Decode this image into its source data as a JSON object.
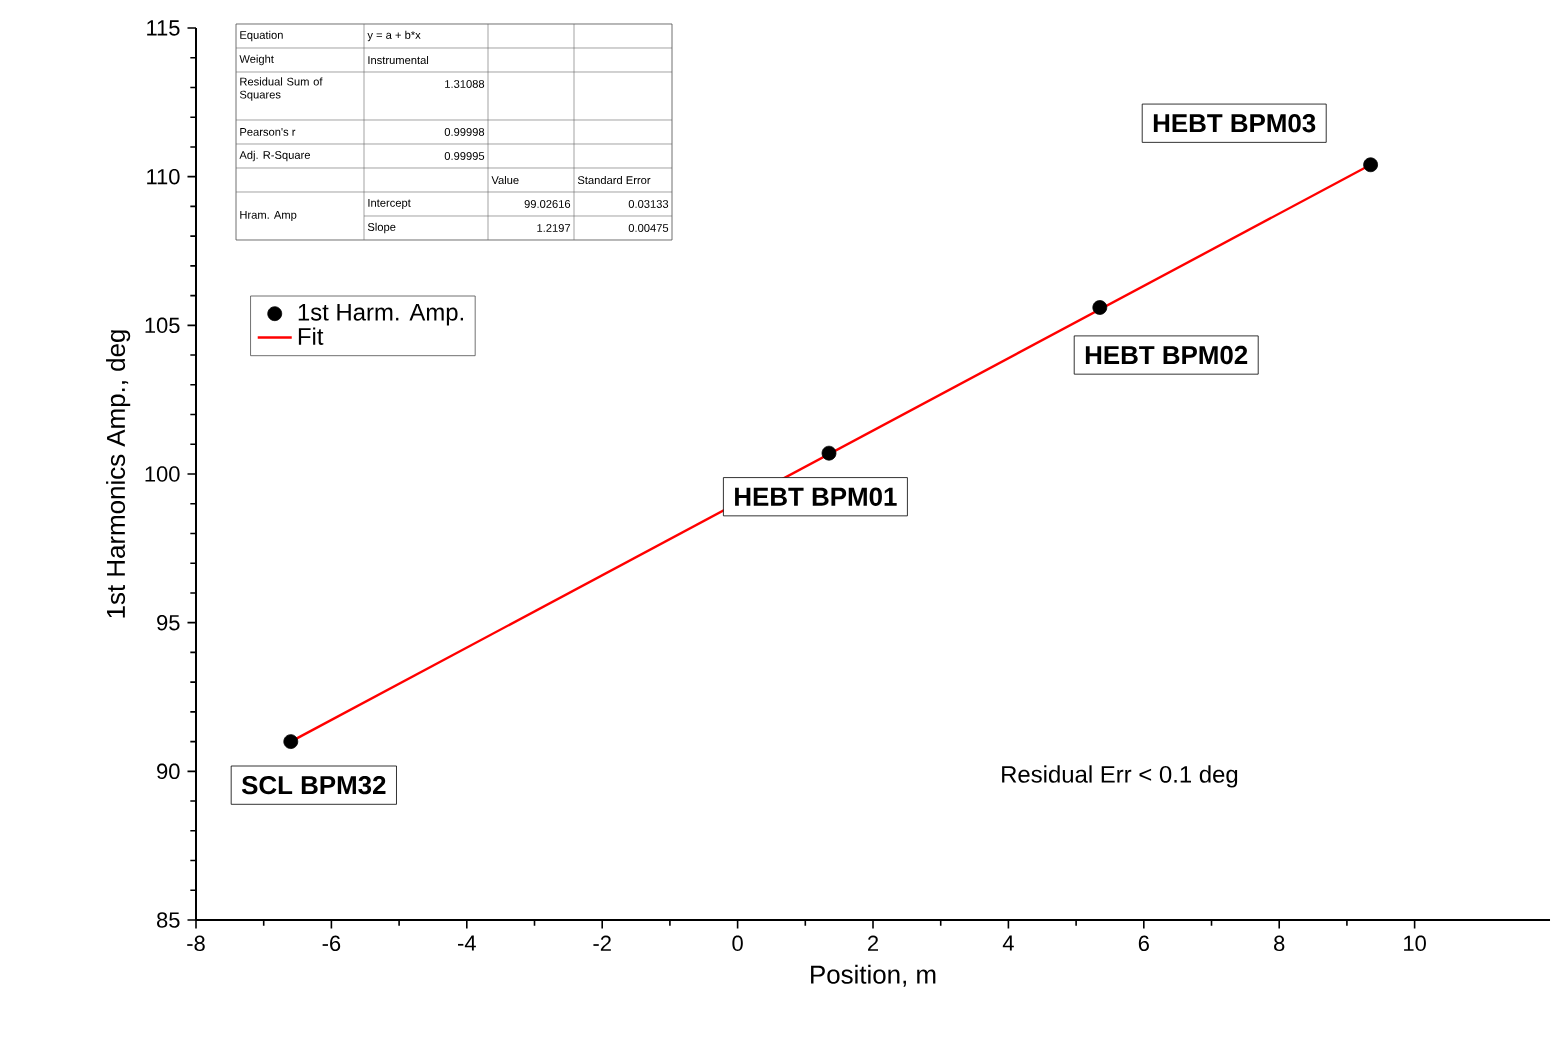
{
  "chart_data": {
    "type": "scatter",
    "xlabel": "Position, m",
    "ylabel": "1st Harmonics Amp., deg",
    "series": [
      {
        "name": "1st Harm. Amp.",
        "color": "#000000",
        "marker": "circle",
        "x": [
          -6.6,
          1.35,
          5.35,
          9.35
        ],
        "values": [
          91.0,
          100.7,
          105.6,
          110.4
        ]
      },
      {
        "name": "Fit",
        "type": "line",
        "color": "#ff0000",
        "marker": "none",
        "x": [
          -6.6,
          9.35
        ],
        "values": [
          91.0,
          110.4
        ]
      }
    ],
    "xlim": [
      -8,
      12
    ],
    "xticks": [
      -8,
      -6,
      -4,
      -2,
      0,
      2,
      4,
      6,
      8,
      10
    ],
    "ylim": [
      85,
      115
    ],
    "yticks": [
      85,
      90,
      95,
      100,
      105,
      110,
      115
    ],
    "grid": false,
    "legend": "top left",
    "annotations": [
      "Equation",
      "y = a + b*x",
      "Weight",
      "Instrumental",
      "Residual Sum of Squares",
      "1.31088",
      "Pearson's r",
      "0.99998",
      "Adj. R-Square",
      "0.99995",
      "Value",
      "Standard Error",
      "Hram. Amp",
      "Intercept",
      "99.02616",
      "0.03133",
      "Slope",
      "1.2197",
      "0.00475",
      {
        "text": "SCL BPM32",
        "x": -6.6,
        "y": 91.0
      },
      {
        "text": "HEBT BPM01",
        "x": 1.35,
        "y": 100.7
      },
      {
        "text": "HEBT BPM02",
        "x": 5.35,
        "y": 105.6
      },
      {
        "text": "HEBT BPM03",
        "x": 9.35,
        "y": 110.4
      },
      "Residual Err < 0.1 deg"
    ]
  }
}
